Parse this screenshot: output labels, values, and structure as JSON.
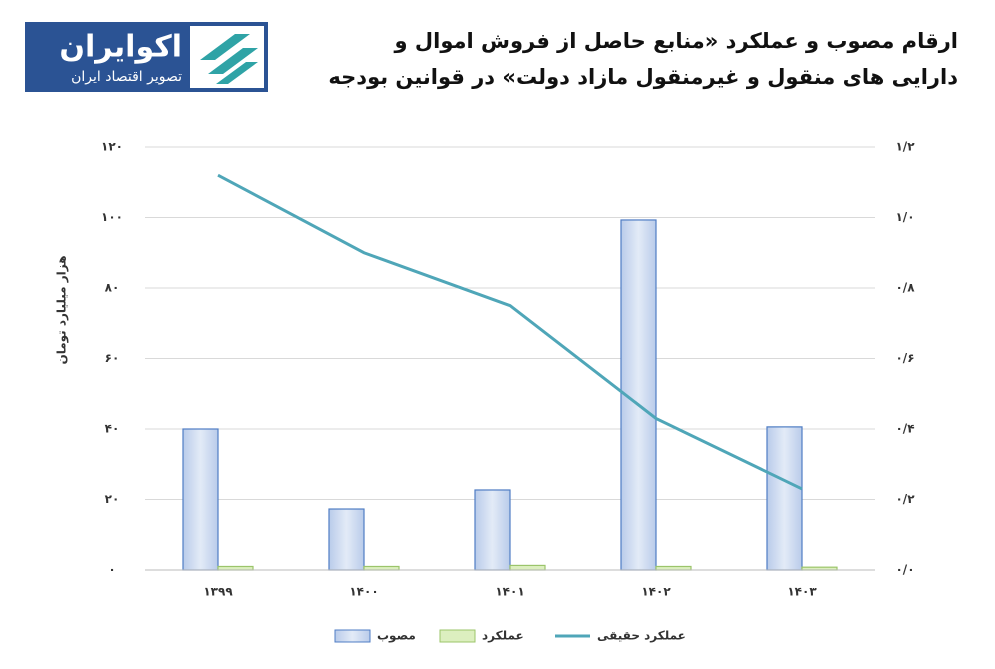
{
  "chart_data": {
    "type": "bar",
    "title": [
      "ارقام مصوب و عملکرد «منابع حاصل از فروش اموال و",
      "دارایی های منقول و غیرمنقول مازاد دولت» در قوانین بودجه"
    ],
    "logo": {
      "name": "اکوایران",
      "tagline": "تصویر اقتصاد ایران"
    },
    "ylabel": "هزار میلیارد تومان",
    "categories": [
      "۱۳۹۹",
      "۱۴۰۰",
      "۱۴۰۱",
      "۱۴۰۲",
      "۱۴۰۳"
    ],
    "series": [
      {
        "name": "مصوب",
        "color": "#4f7dc4",
        "fill": "#cfdcf1",
        "values": [
          40,
          17.3,
          22.7,
          99.3,
          40.6
        ]
      },
      {
        "name": "عملکرد",
        "color": "#9bc46a",
        "fill": "#dcefbf",
        "values": [
          1,
          1,
          1.3,
          1,
          0.8
        ]
      },
      {
        "name": "عملکرد حقیقی",
        "type": "line",
        "axis": "y2",
        "color": "#4fa6b8",
        "values": [
          1.12,
          0.9,
          0.75,
          0.43,
          0.23
        ]
      }
    ],
    "ylim": [
      0,
      120
    ],
    "yticks": [
      {
        "value": 0,
        "label": "۰"
      },
      {
        "value": 20,
        "label": "۲۰"
      },
      {
        "value": 40,
        "label": "۴۰"
      },
      {
        "value": 60,
        "label": "۶۰"
      },
      {
        "value": 80,
        "label": "۸۰"
      },
      {
        "value": 100,
        "label": "۱۰۰"
      },
      {
        "value": 120,
        "label": "۱۲۰"
      }
    ],
    "y2lim": [
      0,
      1.2
    ],
    "y2ticks": [
      {
        "value": 0,
        "label": "۰/۰"
      },
      {
        "value": 0.2,
        "label": "۰/۲"
      },
      {
        "value": 0.4,
        "label": "۰/۴"
      },
      {
        "value": 0.6,
        "label": "۰/۶"
      },
      {
        "value": 0.8,
        "label": "۰/۸"
      },
      {
        "value": 1.0,
        "label": "۱/۰"
      },
      {
        "value": 1.2,
        "label": "۱/۲"
      }
    ],
    "grid": true
  }
}
